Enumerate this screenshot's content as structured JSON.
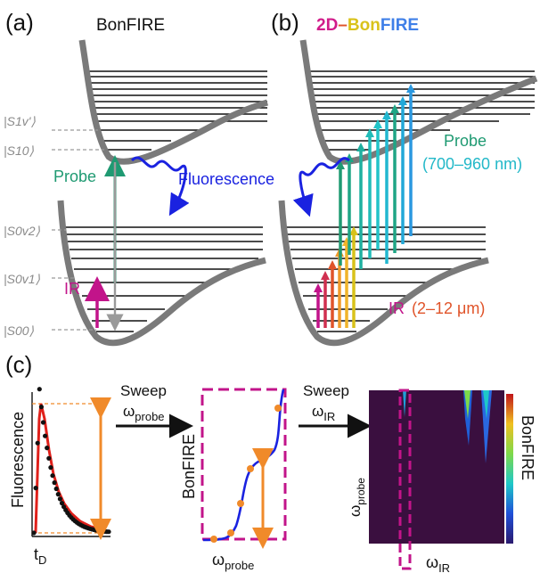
{
  "panels": {
    "a": "(a)",
    "b": "(b)",
    "c": "(c)"
  },
  "titles": {
    "a": "BonFIRE",
    "b_segments": [
      {
        "text": "2D",
        "color": "#d11c8a"
      },
      {
        "text": "–",
        "color": "#e0542a"
      },
      {
        "text": "Bon",
        "color": "#d9c21a"
      },
      {
        "text": "FIRE",
        "color": "#3f7fe8"
      }
    ]
  },
  "levels": {
    "s1v": "|S1v'⟩",
    "s10": "|S10⟩",
    "s0v2": "|S0v2⟩",
    "s0v1": "|S0v1⟩",
    "s00": "|S00⟩"
  },
  "panel_a": {
    "probe": "Probe",
    "fluorescence": "Fluorescence",
    "ir": "IR"
  },
  "panel_b": {
    "probe": "Probe",
    "probe_range": "(700–960 nm)",
    "ir": "IR",
    "ir_range": "(2–12 μm)"
  },
  "panel_c": {
    "fluorescence": "Fluorescence",
    "t_d": "t",
    "t_d_sub": "D",
    "sweep1": "Sweep",
    "sweep1_var": "ω",
    "sweep1_sub": "probe",
    "bonfire_axis": "BonFIRE",
    "omega_probe": "ω",
    "omega_probe_sub": "probe",
    "sweep2": "Sweep",
    "sweep2_var": "ω",
    "sweep2_sub": "IR",
    "heat_y": "ω",
    "heat_y_sub": "probe",
    "heat_x": "ω",
    "heat_x_sub": "IR",
    "colorbar_label": "BonFIRE"
  },
  "colors": {
    "well": "#7a7a7a",
    "probe_green": "#1f9a72",
    "fluor_blue": "#1a22e0",
    "ir_magenta": "#c2148a",
    "fit_red": "#e0201a",
    "guide_orange": "#f08a2a",
    "dashed_box": "#c2148a",
    "heatmap_bg": "#3a0f3f"
  },
  "icons": {
    "decay-trace": "decay-curve",
    "spectrum-trace": "sigmoid-curve",
    "heatmap": "2d-map"
  }
}
